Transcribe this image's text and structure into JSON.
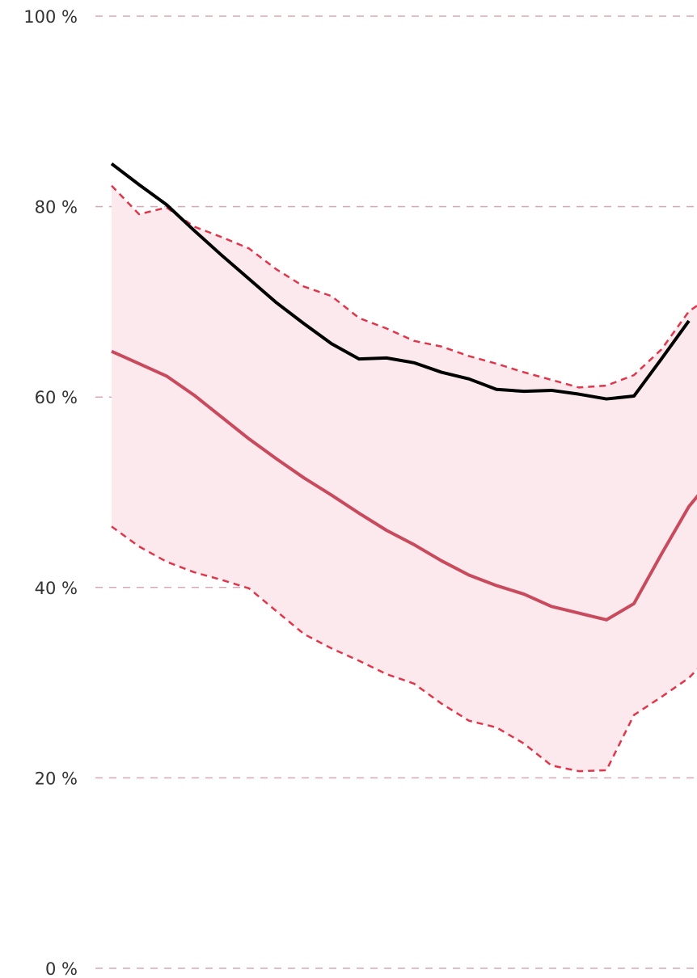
{
  "chart_data": {
    "type": "area",
    "xlabel": "",
    "ylabel": "",
    "y_range": [
      0,
      100
    ],
    "y_ticks": [
      {
        "value": 0,
        "label": "0 %"
      },
      {
        "value": 20,
        "label": "20 %"
      },
      {
        "value": 40,
        "label": "40 %"
      },
      {
        "value": 60,
        "label": "60 %"
      },
      {
        "value": 80,
        "label": "80 %"
      },
      {
        "value": 100,
        "label": "100 %"
      }
    ],
    "grid": true,
    "legend": "none",
    "x": [
      1,
      2,
      3,
      4,
      5,
      6,
      7,
      8,
      9,
      10,
      11,
      12,
      13,
      14,
      15,
      16,
      17,
      18,
      19,
      20,
      21,
      22,
      23
    ],
    "series": [
      {
        "style": "band",
        "color": "#fbe9ed",
        "upper": [
          82.2,
          79.2,
          79.9,
          77.9,
          76.8,
          75.6,
          73.4,
          71.6,
          70.6,
          68.3,
          67.2,
          65.9,
          65.3,
          64.3,
          63.5,
          62.6,
          61.8,
          61.0,
          61.2,
          62.3,
          65.0,
          69.0,
          71.0
        ],
        "lower": [
          46.4,
          44.3,
          42.7,
          41.6,
          40.8,
          39.9,
          37.5,
          35.1,
          33.6,
          32.3,
          30.9,
          29.9,
          27.8,
          26.0,
          25.3,
          23.6,
          21.3,
          20.7,
          20.8,
          26.6,
          28.5,
          30.5,
          33.5
        ]
      },
      {
        "style": "dashed",
        "color": "#e0364a",
        "values": [
          82.2,
          79.2,
          79.9,
          77.9,
          76.8,
          75.6,
          73.4,
          71.6,
          70.6,
          68.3,
          67.2,
          65.9,
          65.3,
          64.3,
          63.5,
          62.6,
          61.8,
          61.0,
          61.2,
          62.3,
          65.0,
          69.0,
          71.0
        ]
      },
      {
        "style": "dashed",
        "color": "#e0364a",
        "values": [
          46.4,
          44.3,
          42.7,
          41.6,
          40.8,
          39.9,
          37.5,
          35.1,
          33.6,
          32.3,
          30.9,
          29.9,
          27.8,
          26.0,
          25.3,
          23.6,
          21.3,
          20.7,
          20.8,
          26.6,
          28.5,
          30.5,
          33.5
        ]
      },
      {
        "style": "solid",
        "color": "#c84a5c",
        "values": [
          64.8,
          63.5,
          62.2,
          60.2,
          57.9,
          55.6,
          53.5,
          51.5,
          49.7,
          47.8,
          46.0,
          44.5,
          42.8,
          41.3,
          40.2,
          39.3,
          38.0,
          37.3,
          36.6,
          38.3,
          43.5,
          48.5,
          52.0
        ]
      },
      {
        "style": "solid",
        "color": "#000000",
        "values": [
          84.5,
          82.3,
          80.2,
          77.5,
          74.9,
          72.4,
          69.9,
          67.7,
          65.6,
          64.0,
          64.1,
          63.6,
          62.6,
          61.9,
          60.8,
          60.6,
          60.7,
          60.3,
          59.8,
          60.1,
          64.0,
          68.0,
          null
        ]
      }
    ]
  }
}
